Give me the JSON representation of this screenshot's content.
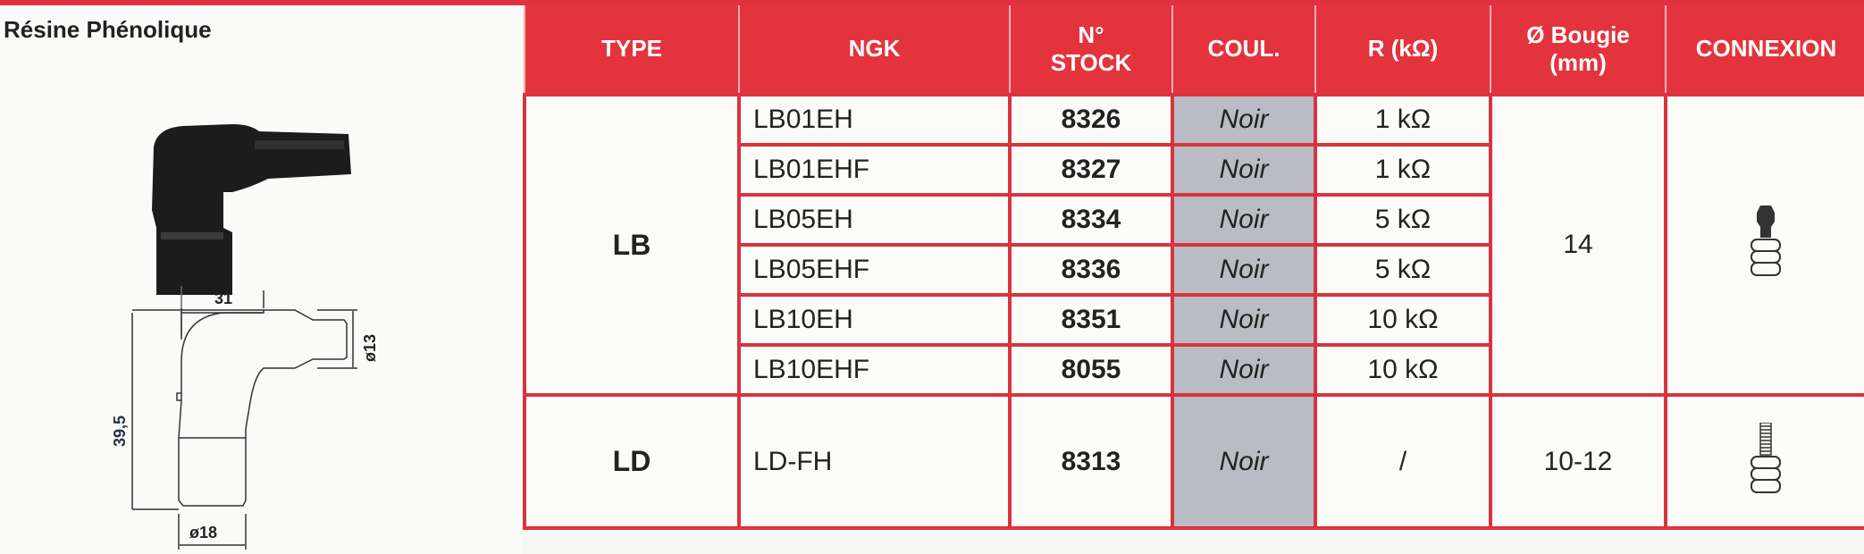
{
  "section_title": "Résine Phénolique",
  "drawing": {
    "width": "31",
    "height": "39,5",
    "diameter_top": "ø13",
    "diameter_bottom": "ø18"
  },
  "headers": {
    "type": "TYPE",
    "ngk": "NGK",
    "stock_1": "N°",
    "stock_2": "STOCK",
    "coul": "COUL.",
    "r": "R (kΩ)",
    "bougie_1": "Ø Bougie",
    "bougie_2": "(mm)",
    "connexion": "CONNEXION"
  },
  "groups": [
    {
      "type": "LB",
      "bougie": "14",
      "connexion_icon": "snap-terminal-icon",
      "rows": [
        {
          "ngk": "LB01EH",
          "stock": "8326",
          "coul": "Noir",
          "r": "1 kΩ"
        },
        {
          "ngk": "LB01EHF",
          "stock": "8327",
          "coul": "Noir",
          "r": "1 kΩ"
        },
        {
          "ngk": "LB05EH",
          "stock": "8334",
          "coul": "Noir",
          "r": "5 kΩ"
        },
        {
          "ngk": "LB05EHF",
          "stock": "8336",
          "coul": "Noir",
          "r": "5 kΩ"
        },
        {
          "ngk": "LB10EH",
          "stock": "8351",
          "coul": "Noir",
          "r": "10 kΩ"
        },
        {
          "ngk": "LB10EHF",
          "stock": "8055",
          "coul": "Noir",
          "r": "10 kΩ"
        }
      ]
    },
    {
      "type": "LD",
      "bougie": "10-12",
      "connexion_icon": "threaded-terminal-icon",
      "rows": [
        {
          "ngk": "LD-FH",
          "stock": "8313",
          "coul": "Noir",
          "r": "/"
        }
      ]
    }
  ],
  "colors": {
    "header_red": "#e3343e",
    "coul_gray": "#b9bcc4"
  }
}
